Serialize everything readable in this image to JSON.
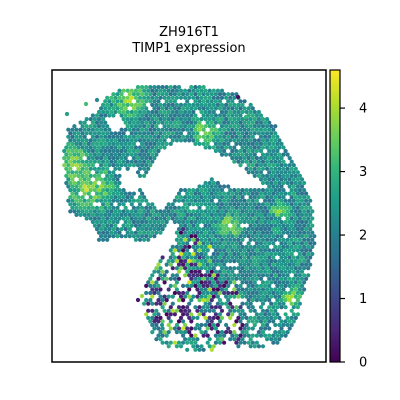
{
  "chart_data": {
    "type": "heatmap",
    "title": "ZH916T1",
    "subtitle": "TIMP1 expression",
    "xlabel": "",
    "ylabel": "",
    "colorbar": {
      "colormap": "viridis",
      "range": [
        0,
        4.6
      ],
      "ticks": [
        "0",
        "1",
        "2",
        "3",
        "4"
      ],
      "tick_values": [
        0,
        1,
        2,
        3,
        4
      ]
    },
    "axes_ticks_shown": false,
    "grid": false
  },
  "colors": {
    "viridis_stops": [
      "#440154",
      "#482878",
      "#3e4989",
      "#31688e",
      "#26828e",
      "#1f9e89",
      "#35b779",
      "#6ece58",
      "#b5de2b",
      "#fde725"
    ],
    "frame": "#000000",
    "background": "#ffffff"
  }
}
